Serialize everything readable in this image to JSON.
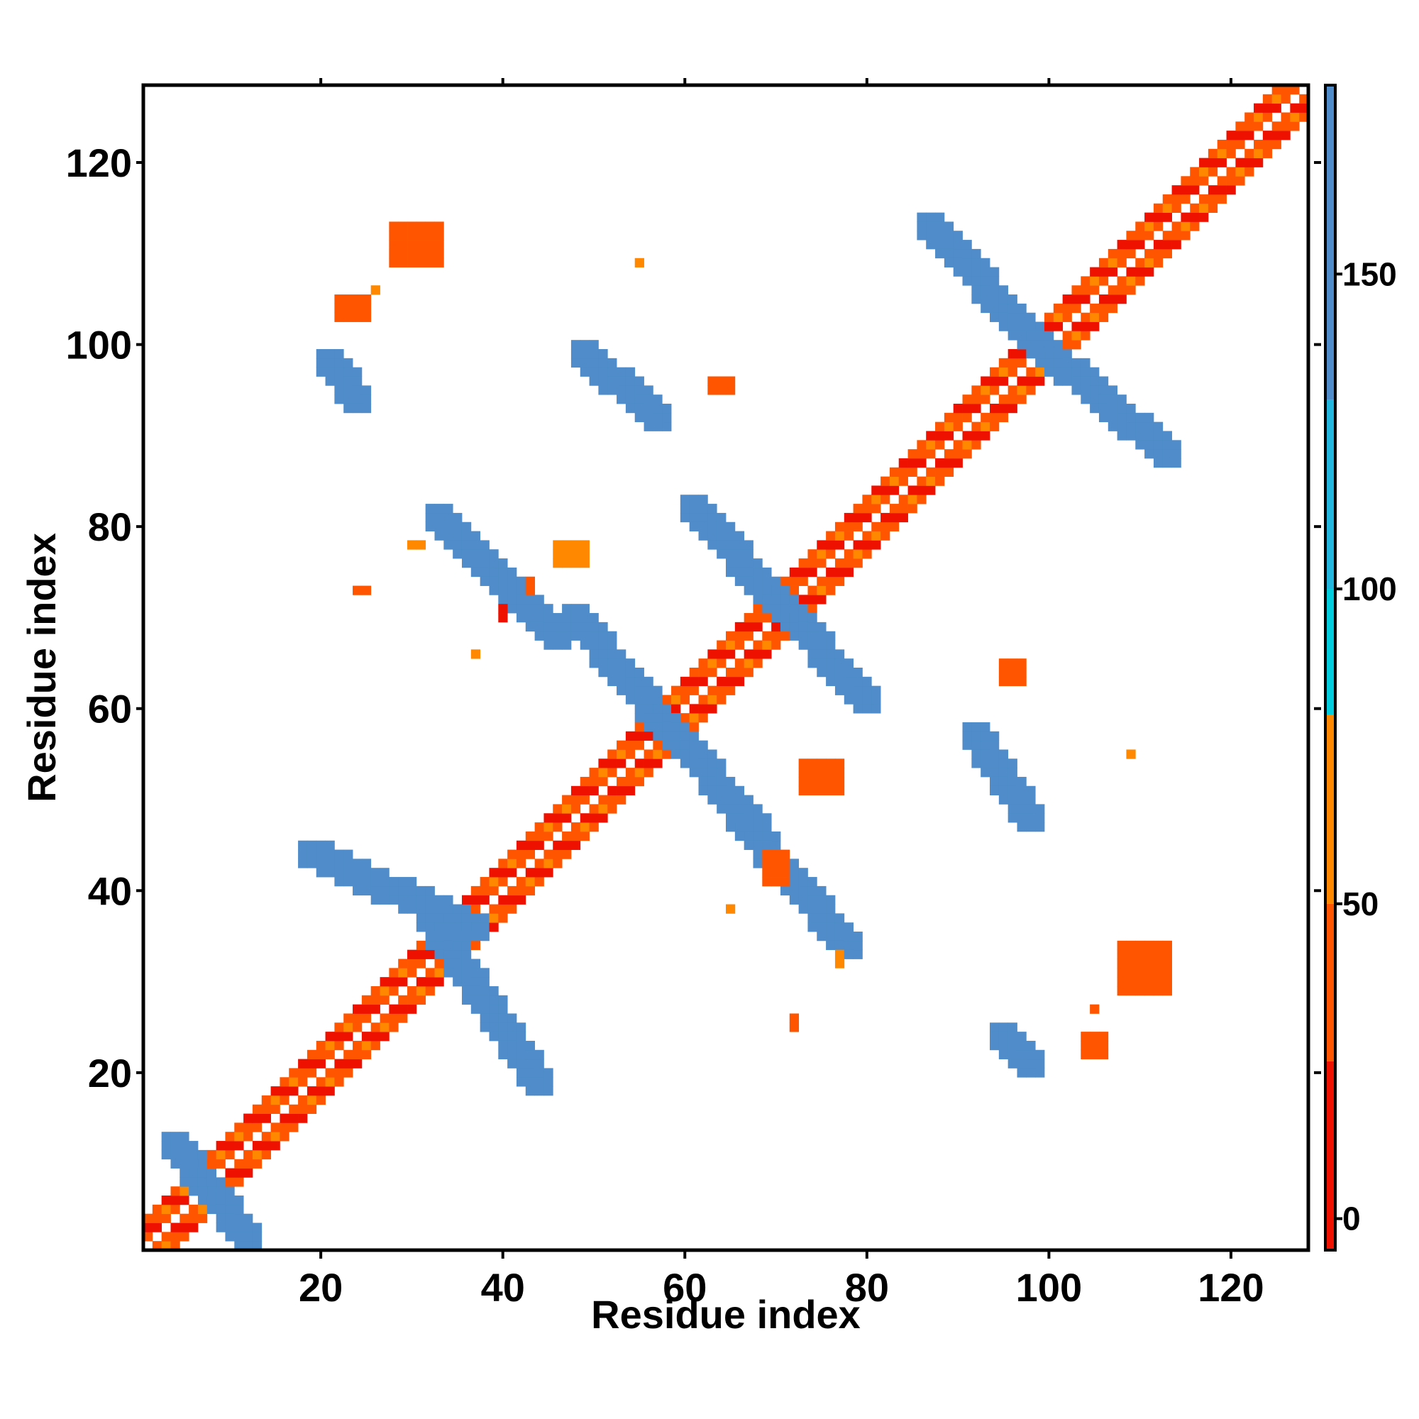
{
  "chart_data": {
    "type": "heatmap",
    "title": "",
    "xlabel": "Residue index",
    "ylabel": "Residue index",
    "xlim": [
      1,
      128
    ],
    "ylim": [
      1,
      128
    ],
    "x_ticks": [
      20,
      40,
      60,
      80,
      100,
      120
    ],
    "y_ticks": [
      20,
      40,
      60,
      80,
      100,
      120
    ],
    "colorbar": {
      "range": [
        -5,
        180
      ],
      "ticks": [
        0,
        50,
        100,
        150
      ],
      "bands": [
        {
          "from": -5,
          "to": 25,
          "color": "#ee1100"
        },
        {
          "from": 25,
          "to": 50,
          "color": "#ff5500"
        },
        {
          "from": 50,
          "to": 80,
          "color": "#ff8800"
        },
        {
          "from": 80,
          "to": 100,
          "color": "#00ccdd"
        },
        {
          "from": 100,
          "to": 130,
          "color": "#22b5dd"
        },
        {
          "from": 130,
          "to": 180,
          "color": "#4f8cc9"
        },
        {
          "from": 180,
          "to": 190,
          "color": "#ffffff"
        }
      ]
    },
    "segments": [
      {
        "from": [
          1,
          1
        ],
        "to": [
          128,
          128
        ],
        "width": 5,
        "value": 25,
        "pattern": "checker"
      },
      {
        "from": [
          4,
          12
        ],
        "to": [
          12,
          2
        ],
        "width": 3,
        "value": 140
      },
      {
        "from": [
          19,
          44
        ],
        "to": [
          37,
          36
        ],
        "width": 3,
        "value": 140
      },
      {
        "from": [
          32,
          37
        ],
        "to": [
          44,
          19
        ],
        "width": 3,
        "value": 140
      },
      {
        "from": [
          33,
          81
        ],
        "to": [
          46,
          68
        ],
        "width": 3,
        "value": 140
      },
      {
        "from": [
          48,
          70
        ],
        "to": [
          58,
          58
        ],
        "width": 3,
        "value": 140
      },
      {
        "from": [
          58,
          58
        ],
        "to": [
          68,
          47
        ],
        "width": 3,
        "value": 140
      },
      {
        "from": [
          61,
          82
        ],
        "to": [
          80,
          61
        ],
        "width": 3,
        "value": 140
      },
      {
        "from": [
          66,
          48
        ],
        "to": [
          78,
          34
        ],
        "width": 3,
        "value": 140
      },
      {
        "from": [
          49,
          99
        ],
        "to": [
          57,
          92
        ],
        "width": 3,
        "value": 140
      },
      {
        "from": [
          87,
          113
        ],
        "to": [
          99,
          100
        ],
        "width": 3,
        "value": 140
      },
      {
        "from": [
          99,
          100
        ],
        "to": [
          113,
          88
        ],
        "width": 3,
        "value": 140
      },
      {
        "from": [
          92,
          57
        ],
        "to": [
          98,
          48
        ],
        "width": 3,
        "value": 140
      },
      {
        "from": [
          21,
          98
        ],
        "to": [
          24,
          94
        ],
        "width": 2,
        "value": 140
      },
      {
        "from": [
          95,
          24
        ],
        "to": [
          98,
          21
        ],
        "width": 2,
        "value": 140
      }
    ],
    "patches": [
      {
        "x": 28,
        "y": 109,
        "w": 6,
        "h": 5,
        "value": 40
      },
      {
        "x": 22,
        "y": 103,
        "w": 4,
        "h": 3,
        "value": 30
      },
      {
        "x": 26,
        "y": 106,
        "w": 1,
        "h": 1,
        "value": 60
      },
      {
        "x": 55,
        "y": 109,
        "w": 1,
        "h": 1,
        "value": 60
      },
      {
        "x": 63,
        "y": 95,
        "w": 3,
        "h": 2,
        "value": 40
      },
      {
        "x": 46,
        "y": 76,
        "w": 4,
        "h": 3,
        "value": 50
      },
      {
        "x": 30,
        "y": 78,
        "w": 2,
        "h": 1,
        "value": 60
      },
      {
        "x": 24,
        "y": 73,
        "w": 2,
        "h": 1,
        "value": 40
      },
      {
        "x": 37,
        "y": 66,
        "w": 1,
        "h": 1,
        "value": 60
      },
      {
        "x": 40,
        "y": 70,
        "w": 1,
        "h": 2,
        "value": 10
      },
      {
        "x": 43,
        "y": 73,
        "w": 1,
        "h": 2,
        "value": 40
      },
      {
        "x": 95,
        "y": 63,
        "w": 3,
        "h": 3,
        "value": 40
      },
      {
        "x": 109,
        "y": 55,
        "w": 1,
        "h": 1,
        "value": 60
      },
      {
        "x": 73,
        "y": 51,
        "w": 5,
        "h": 4,
        "value": 40
      },
      {
        "x": 69,
        "y": 41,
        "w": 3,
        "h": 4,
        "value": 30
      },
      {
        "x": 65,
        "y": 38,
        "w": 1,
        "h": 1,
        "value": 60
      },
      {
        "x": 77,
        "y": 32,
        "w": 1,
        "h": 2,
        "value": 60
      },
      {
        "x": 72,
        "y": 25,
        "w": 1,
        "h": 2,
        "value": 30
      },
      {
        "x": 108,
        "y": 29,
        "w": 6,
        "h": 6,
        "value": 40
      },
      {
        "x": 104,
        "y": 22,
        "w": 3,
        "h": 3,
        "value": 40
      },
      {
        "x": 105,
        "y": 27,
        "w": 1,
        "h": 1,
        "value": 40
      }
    ]
  }
}
